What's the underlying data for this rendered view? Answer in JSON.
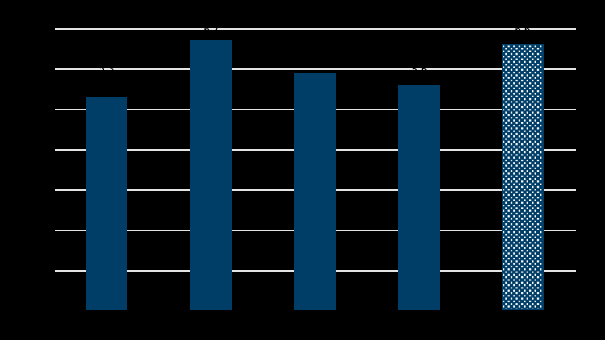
{
  "chart_data": {
    "type": "bar",
    "title": "",
    "categories": [
      "",
      "",
      "",
      "",
      ""
    ],
    "values": [
      5.3,
      6.7,
      5.9,
      5.6,
      6.6
    ],
    "bar_labels": [
      "5.3",
      "6.7",
      "5.9",
      "5.6",
      "6.6"
    ],
    "ylim": [
      0,
      7
    ],
    "grid": true,
    "gridline_count": 7,
    "legend": false,
    "last_bar_style": "dotted-hatch",
    "colors": {
      "background": "#000000",
      "bar_fill": "#003e68",
      "bar_edge": "#003e68",
      "hatch_dot": "#ffffff",
      "gridline": "#e4e4e4",
      "label_text": "#000000"
    }
  }
}
